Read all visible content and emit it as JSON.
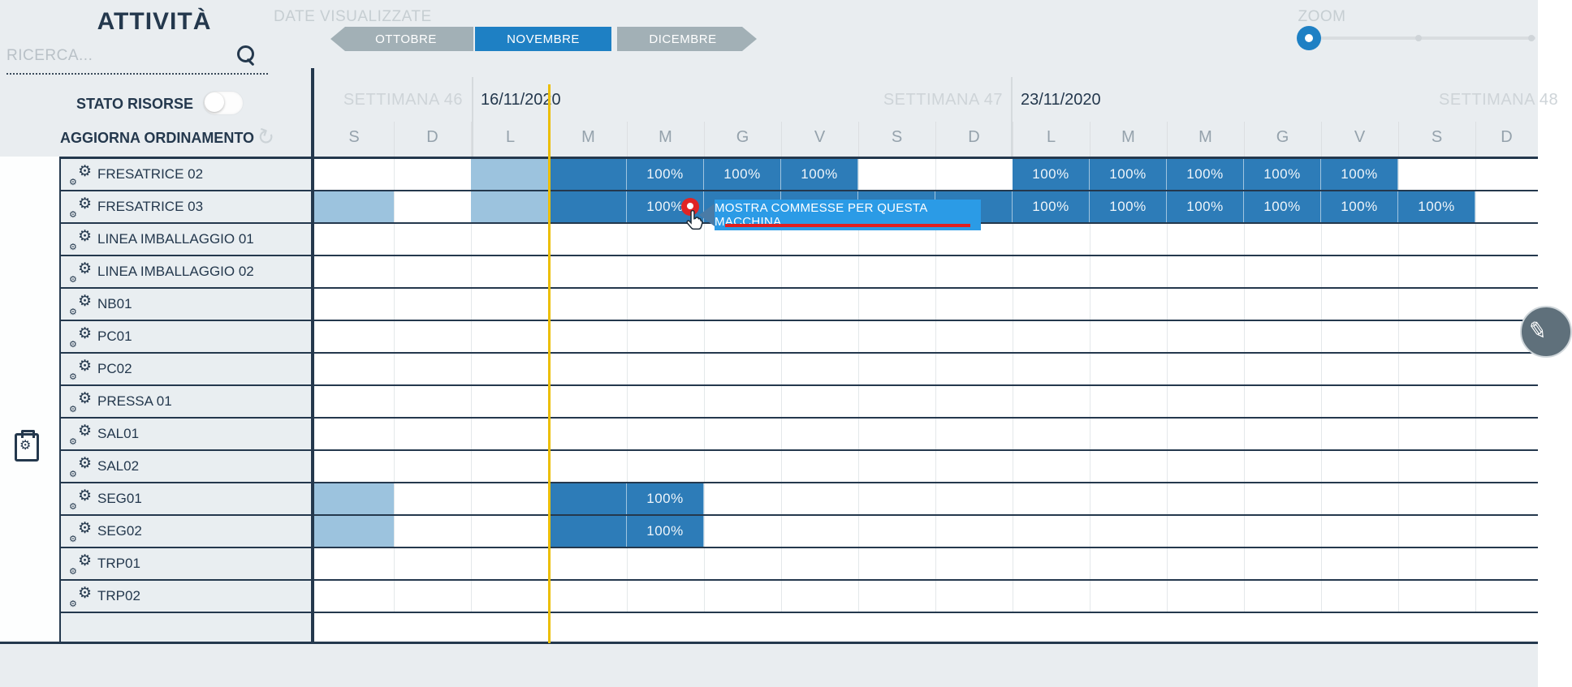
{
  "sidebar": {
    "title": "ATTIVITÀ",
    "search_placeholder": "RICERCA...",
    "stato_risorse_label": "STATO RISORSE",
    "aggiorna_ordinamento_label": "AGGIORNA ORDINAMENTO"
  },
  "toolbar": {
    "date_label": "DATE VISUALIZZATE",
    "months": [
      {
        "label": "OTTOBRE",
        "selected": false
      },
      {
        "label": "NOVEMBRE",
        "selected": true
      },
      {
        "label": "DICEMBRE",
        "selected": false
      }
    ],
    "zoom_label": "ZOOM"
  },
  "timeline": {
    "week_sections": [
      {
        "week_label": "SETTIMANA 46",
        "date_label": ""
      },
      {
        "week_label": "SETTIMANA 47",
        "date_label": "16/11/2020"
      },
      {
        "week_label": "SETTIMANA 48",
        "date_label": "23/11/2020"
      }
    ],
    "day_letters": [
      "S",
      "D",
      "L",
      "M",
      "M",
      "G",
      "V",
      "S",
      "D",
      "L",
      "M",
      "M",
      "G",
      "V",
      "S",
      "D"
    ]
  },
  "resources": [
    "FRESATRICE 02",
    "FRESATRICE 03",
    "LINEA IMBALLAGGIO 01",
    "LINEA IMBALLAGGIO 02",
    "NB01",
    "PC01",
    "PC02",
    "PRESSA 01",
    "SAL01",
    "SAL02",
    "SEG01",
    "SEG02",
    "TRP01",
    "TRP02"
  ],
  "schedule": {
    "FRESATRICE 02": [
      {
        "col": 2,
        "type": "light",
        "label": ""
      },
      {
        "col": 3,
        "type": "dark",
        "label": ""
      },
      {
        "col": 4,
        "type": "dark",
        "label": "100%"
      },
      {
        "col": 5,
        "type": "dark",
        "label": "100%"
      },
      {
        "col": 6,
        "type": "dark",
        "label": "100%"
      },
      {
        "col": 9,
        "type": "dark",
        "label": "100%"
      },
      {
        "col": 10,
        "type": "dark",
        "label": "100%"
      },
      {
        "col": 11,
        "type": "dark",
        "label": "100%"
      },
      {
        "col": 12,
        "type": "dark",
        "label": "100%"
      },
      {
        "col": 13,
        "type": "dark",
        "label": "100%"
      }
    ],
    "FRESATRICE 03": [
      {
        "col": 0,
        "type": "light",
        "label": ""
      },
      {
        "col": 2,
        "type": "light",
        "label": ""
      },
      {
        "col": 3,
        "type": "dark",
        "label": ""
      },
      {
        "col": 4,
        "type": "dark",
        "label": "100%"
      },
      {
        "col": 5,
        "type": "dark",
        "label": ""
      },
      {
        "col": 6,
        "type": "dark",
        "label": ""
      },
      {
        "col": 7,
        "type": "dark",
        "label": ""
      },
      {
        "col": 8,
        "type": "dark",
        "label": ""
      },
      {
        "col": 9,
        "type": "dark",
        "label": "100%"
      },
      {
        "col": 10,
        "type": "dark",
        "label": "100%"
      },
      {
        "col": 11,
        "type": "dark",
        "label": "100%"
      },
      {
        "col": 12,
        "type": "dark",
        "label": "100%"
      },
      {
        "col": 13,
        "type": "dark",
        "label": "100%"
      },
      {
        "col": 14,
        "type": "dark",
        "label": "100%"
      }
    ],
    "SEG01": [
      {
        "col": 0,
        "type": "light",
        "label": ""
      },
      {
        "col": 3,
        "type": "dark",
        "label": ""
      },
      {
        "col": 4,
        "type": "dark",
        "label": "100%"
      }
    ],
    "SEG02": [
      {
        "col": 0,
        "type": "light",
        "label": ""
      },
      {
        "col": 3,
        "type": "dark",
        "label": ""
      },
      {
        "col": 4,
        "type": "dark",
        "label": "100%"
      }
    ]
  },
  "tooltip": {
    "text": "MOSTRA COMMESSE PER QUESTA MACCHINA"
  },
  "colors": {
    "bar_dark": "#2d7cb8",
    "bar_light": "#9cc3de",
    "accent_blue": "#1e80c4",
    "tooltip_blue": "#2b9be6",
    "alert_red": "#e02424",
    "now_line_yellow": "#ecbe04"
  }
}
